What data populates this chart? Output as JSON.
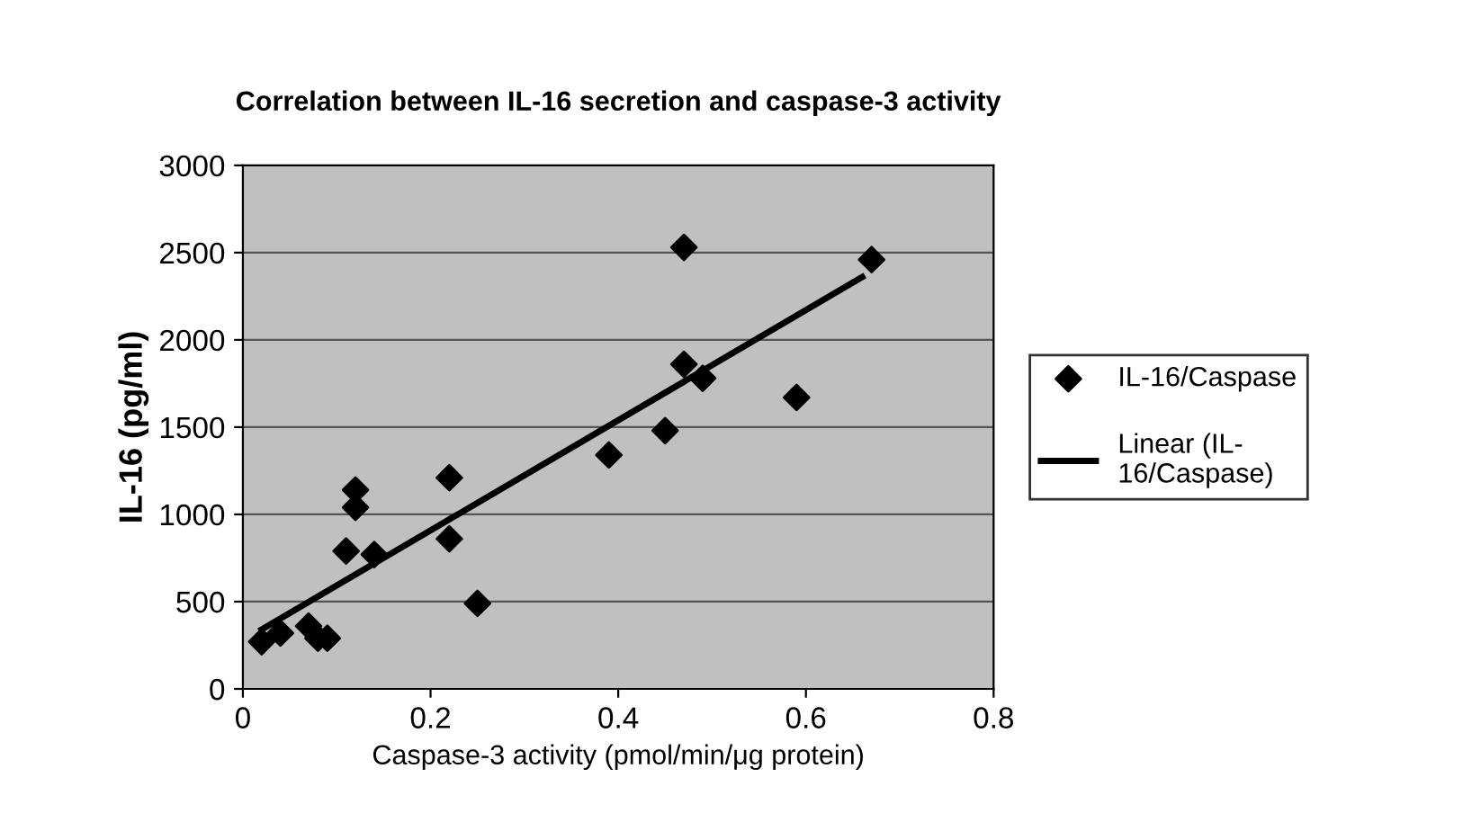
{
  "chart_data": {
    "type": "scatter",
    "title": "Correlation between IL-16 secretion and caspase-3 activity",
    "xlabel": "Caspase-3 activity (pmol/min/μg protein)",
    "ylabel": "IL-16 (pg/ml)",
    "xlim": [
      0,
      0.8
    ],
    "xticks": [
      0,
      0.2,
      0.4,
      0.6,
      0.8
    ],
    "ylim": [
      0,
      3000
    ],
    "yticks": [
      0,
      500,
      1000,
      1500,
      2000,
      2500,
      3000
    ],
    "grid": "y",
    "legend": "right",
    "series": [
      {
        "name": "IL-16/Caspase",
        "color": "#000000",
        "marker": "diamond",
        "x": [
          0.02,
          0.04,
          0.07,
          0.08,
          0.09,
          0.11,
          0.12,
          0.12,
          0.14,
          0.22,
          0.22,
          0.25,
          0.39,
          0.45,
          0.47,
          0.47,
          0.49,
          0.59,
          0.67
        ],
        "values": [
          270,
          320,
          360,
          290,
          290,
          790,
          1140,
          1040,
          770,
          1210,
          860,
          490,
          1340,
          1480,
          1860,
          2530,
          1780,
          1670,
          2460
        ]
      },
      {
        "name": "Linear (IL-\n16/Caspase)",
        "color": "#000000",
        "type": "line",
        "x": [
          0.02,
          0.66
        ],
        "values": [
          340,
          2360
        ]
      }
    ]
  }
}
